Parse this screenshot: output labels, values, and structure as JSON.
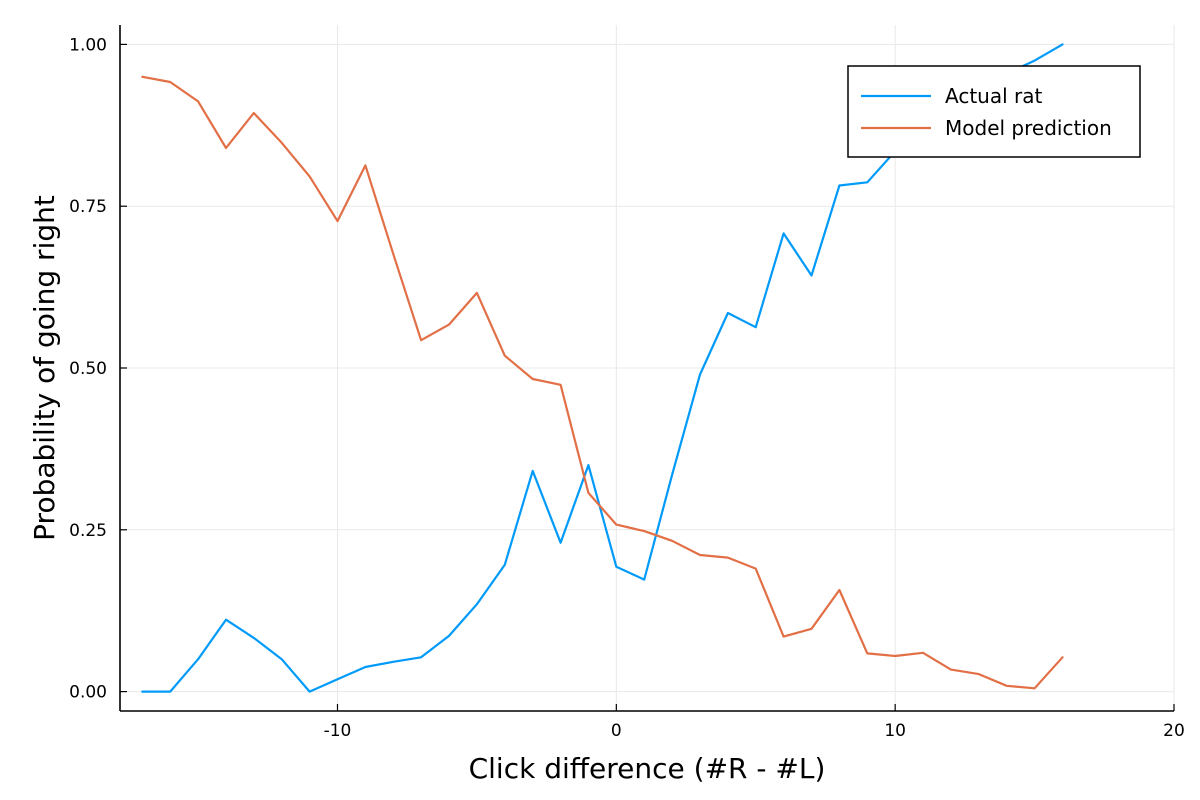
{
  "chart_data": {
    "type": "line",
    "title": "",
    "xlabel": "Click difference (#R - #L)",
    "ylabel": "Probability of going right",
    "xlim": [
      -17.8,
      20
    ],
    "ylim": [
      -0.03,
      1.03
    ],
    "x_ticks": [
      -10,
      0,
      10,
      20
    ],
    "x_tick_labels": [
      "-10",
      "0",
      "10",
      "20"
    ],
    "y_ticks": [
      0,
      0.25,
      0.5,
      0.75,
      1.0
    ],
    "y_tick_labels": [
      "0.00",
      "0.25",
      "0.50",
      "0.75",
      "1.00"
    ],
    "grid": true,
    "legend_position": "top-right",
    "series": [
      {
        "name": "Actual rat",
        "color": "#009af9",
        "x": [
          -17,
          -16,
          -15,
          -14,
          -13,
          -12,
          -11,
          -10,
          -9,
          -8,
          -7,
          -6,
          -5,
          -4,
          -3,
          -2,
          -1,
          0,
          1,
          2,
          3,
          4,
          5,
          6,
          7,
          8,
          9,
          10,
          11,
          12,
          13,
          14,
          15,
          16
        ],
        "values": [
          0.0,
          0.0,
          0.05,
          0.111,
          0.083,
          0.05,
          0.0,
          0.019,
          0.038,
          0.046,
          0.053,
          0.086,
          0.135,
          0.196,
          0.341,
          0.23,
          0.35,
          0.193,
          0.173,
          0.335,
          0.49,
          0.585,
          0.563,
          0.708,
          0.643,
          0.782,
          0.787,
          0.835,
          0.862,
          0.9,
          0.93,
          0.955,
          0.975,
          1.0
        ]
      },
      {
        "name": "Model prediction",
        "color": "#e26f46",
        "x": [
          -17,
          -16,
          -15,
          -14,
          -13,
          -12,
          -11,
          -10,
          -9,
          -8,
          -7,
          -6,
          -5,
          -4,
          -3,
          -2,
          -1,
          0,
          1,
          2,
          3,
          4,
          5,
          6,
          7,
          8,
          9,
          10,
          11,
          12,
          13,
          14,
          15,
          16
        ],
        "values": [
          0.95,
          0.942,
          0.912,
          0.84,
          0.894,
          0.848,
          0.796,
          0.727,
          0.813,
          0.676,
          0.543,
          0.567,
          0.616,
          0.519,
          0.483,
          0.474,
          0.307,
          0.258,
          0.248,
          0.233,
          0.211,
          0.207,
          0.19,
          0.085,
          0.097,
          0.157,
          0.059,
          0.055,
          0.06,
          0.034,
          0.027,
          0.009,
          0.005,
          0.053
        ]
      }
    ]
  }
}
